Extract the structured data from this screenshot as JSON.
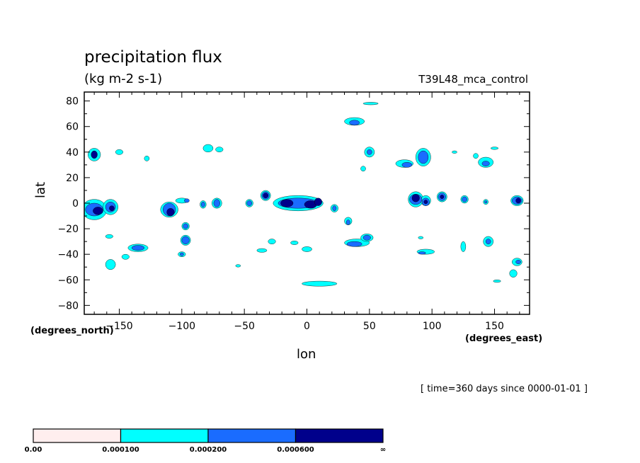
{
  "title": "precipitation flux",
  "subtitle": "(kg m-2 s-1)",
  "run_name": "T39L48_mca_control",
  "time_info": "[ time=360 days since 0000-01-01 ]",
  "chart_data": {
    "type": "heatmap",
    "xlabel": "lon",
    "ylabel": "lat",
    "x_unit": "(degrees_east)",
    "y_unit": "(degrees_north)",
    "xlim": [
      -178,
      178
    ],
    "ylim": [
      -87,
      87
    ],
    "x_ticks": [
      -150,
      -100,
      -50,
      0,
      50,
      100,
      150
    ],
    "x_tick_labels": [
      "−150",
      "−100",
      "−50",
      "0",
      "50",
      "100",
      "150"
    ],
    "y_ticks": [
      80,
      60,
      40,
      20,
      0,
      -20,
      -40,
      -60,
      -80
    ],
    "y_tick_labels": [
      "80",
      "60",
      "40",
      "20",
      "0",
      "−20",
      "−40",
      "−60",
      "−80"
    ],
    "colorbar": {
      "levels": [
        "0.00",
        "0.000100",
        "0.000200",
        "0.000600",
        "∞"
      ],
      "colors": [
        "#ffeeee",
        "#00ffff",
        "#1a6cff",
        "#00008b"
      ]
    },
    "regions": [
      {
        "level": 1,
        "lon": -170,
        "lat": 38,
        "rlon": 5,
        "rlat": 5
      },
      {
        "level": 3,
        "lon": -170,
        "lat": 38,
        "rlon": 2.5,
        "rlat": 3
      },
      {
        "level": 1,
        "lon": -170,
        "lat": -5,
        "rlon": 10,
        "rlat": 8
      },
      {
        "level": 2,
        "lon": -170,
        "lat": -5,
        "rlon": 7,
        "rlat": 5
      },
      {
        "level": 3,
        "lon": -167,
        "lat": -6,
        "rlon": 4,
        "rlat": 3
      },
      {
        "level": 1,
        "lon": -157,
        "lat": -3,
        "rlon": 6,
        "rlat": 6
      },
      {
        "level": 2,
        "lon": -157,
        "lat": -3,
        "rlon": 4,
        "rlat": 4
      },
      {
        "level": 3,
        "lon": -156,
        "lat": -4,
        "rlon": 2,
        "rlat": 2
      },
      {
        "level": 1,
        "lon": -150,
        "lat": 40,
        "rlon": 3,
        "rlat": 2
      },
      {
        "level": 1,
        "lon": -128,
        "lat": 35,
        "rlon": 2,
        "rlat": 2
      },
      {
        "level": 1,
        "lon": -110,
        "lat": -5,
        "rlon": 7,
        "rlat": 6
      },
      {
        "level": 2,
        "lon": -110,
        "lat": -5,
        "rlon": 5,
        "rlat": 5
      },
      {
        "level": 3,
        "lon": -109,
        "lat": -7,
        "rlon": 3,
        "rlat": 3
      },
      {
        "level": 1,
        "lon": -97,
        "lat": -18,
        "rlon": 3,
        "rlat": 3
      },
      {
        "level": 2,
        "lon": -97,
        "lat": -18,
        "rlon": 2,
        "rlat": 2
      },
      {
        "level": 1,
        "lon": -97,
        "lat": -29,
        "rlon": 4,
        "rlat": 4
      },
      {
        "level": 2,
        "lon": -97,
        "lat": -29,
        "rlon": 3,
        "rlat": 3
      },
      {
        "level": 1,
        "lon": -100,
        "lat": 2,
        "rlon": 5,
        "rlat": 2
      },
      {
        "level": 2,
        "lon": -96,
        "lat": 2,
        "rlon": 2,
        "rlat": 1.5
      },
      {
        "level": 1,
        "lon": -83,
        "lat": -1,
        "rlon": 2.5,
        "rlat": 3
      },
      {
        "level": 2,
        "lon": -83,
        "lat": -1,
        "rlon": 1.5,
        "rlat": 2
      },
      {
        "level": 1,
        "lon": -72,
        "lat": 0,
        "rlon": 4,
        "rlat": 4
      },
      {
        "level": 2,
        "lon": -72,
        "lat": 0,
        "rlon": 2.5,
        "rlat": 3
      },
      {
        "level": 1,
        "lon": -79,
        "lat": 43,
        "rlon": 4,
        "rlat": 3
      },
      {
        "level": 1,
        "lon": -70,
        "lat": 42,
        "rlon": 3,
        "rlat": 2
      },
      {
        "level": 1,
        "lon": -135,
        "lat": -35,
        "rlon": 8,
        "rlat": 3
      },
      {
        "level": 2,
        "lon": -135,
        "lat": -35,
        "rlon": 5,
        "rlat": 2
      },
      {
        "level": 1,
        "lon": -157,
        "lat": -48,
        "rlon": 4,
        "rlat": 4
      },
      {
        "level": 1,
        "lon": -158,
        "lat": -26,
        "rlon": 3,
        "rlat": 1.5
      },
      {
        "level": 1,
        "lon": -145,
        "lat": -42,
        "rlon": 3,
        "rlat": 2
      },
      {
        "level": 1,
        "lon": -100,
        "lat": -40,
        "rlon": 3,
        "rlat": 2
      },
      {
        "level": 2,
        "lon": -100,
        "lat": -40,
        "rlon": 1.5,
        "rlat": 1.2
      },
      {
        "level": 1,
        "lon": -46,
        "lat": 0,
        "rlon": 3,
        "rlat": 3
      },
      {
        "level": 2,
        "lon": -46,
        "lat": 0,
        "rlon": 2,
        "rlat": 2
      },
      {
        "level": 1,
        "lon": -33,
        "lat": 6,
        "rlon": 4,
        "rlat": 4
      },
      {
        "level": 2,
        "lon": -33,
        "lat": 6,
        "rlon": 3,
        "rlat": 3
      },
      {
        "level": 3,
        "lon": -33,
        "lat": 6,
        "rlon": 2,
        "rlat": 2
      },
      {
        "level": 1,
        "lon": -7,
        "lat": 0,
        "rlon": 20,
        "rlat": 6
      },
      {
        "level": 2,
        "lon": -7,
        "lat": 0,
        "rlon": 16,
        "rlat": 4
      },
      {
        "level": 3,
        "lon": -16,
        "lat": 0,
        "rlon": 5,
        "rlat": 3
      },
      {
        "level": 3,
        "lon": 3,
        "lat": -1,
        "rlon": 5,
        "rlat": 3
      },
      {
        "level": 3,
        "lon": 9,
        "lat": 1,
        "rlon": 3,
        "rlat": 3
      },
      {
        "level": 1,
        "lon": 22,
        "lat": -4,
        "rlon": 3,
        "rlat": 3
      },
      {
        "level": 2,
        "lon": 22,
        "lat": -4,
        "rlon": 1.5,
        "rlat": 2
      },
      {
        "level": 1,
        "lon": 38,
        "lat": 64,
        "rlon": 8,
        "rlat": 3
      },
      {
        "level": 2,
        "lon": 38,
        "lat": 63,
        "rlon": 4,
        "rlat": 2
      },
      {
        "level": 1,
        "lon": 51,
        "lat": 78,
        "rlon": 6,
        "rlat": 1
      },
      {
        "level": 1,
        "lon": 50,
        "lat": 40,
        "rlon": 4,
        "rlat": 4
      },
      {
        "level": 2,
        "lon": 50,
        "lat": 40,
        "rlon": 2,
        "rlat": 2
      },
      {
        "level": 1,
        "lon": 45,
        "lat": 27,
        "rlon": 2,
        "rlat": 2
      },
      {
        "level": 1,
        "lon": -28,
        "lat": -30,
        "rlon": 3,
        "rlat": 2
      },
      {
        "level": 1,
        "lon": -10,
        "lat": -31,
        "rlon": 3,
        "rlat": 1.5
      },
      {
        "level": 1,
        "lon": -36,
        "lat": -37,
        "rlon": 4,
        "rlat": 1.5
      },
      {
        "level": 1,
        "lon": 0,
        "lat": -36,
        "rlon": 4,
        "rlat": 2
      },
      {
        "level": 1,
        "lon": 33,
        "lat": -14,
        "rlon": 3,
        "rlat": 3
      },
      {
        "level": 2,
        "lon": 33,
        "lat": -15,
        "rlon": 1.5,
        "rlat": 2
      },
      {
        "level": 1,
        "lon": 40,
        "lat": -31,
        "rlon": 10,
        "rlat": 3
      },
      {
        "level": 2,
        "lon": 38,
        "lat": -32,
        "rlon": 6,
        "rlat": 2
      },
      {
        "level": 1,
        "lon": 48,
        "lat": -27,
        "rlon": 5,
        "rlat": 3
      },
      {
        "level": 2,
        "lon": 48,
        "lat": -27,
        "rlon": 3,
        "rlat": 2
      },
      {
        "level": 1,
        "lon": 10,
        "lat": -63,
        "rlon": 14,
        "rlat": 2
      },
      {
        "level": 1,
        "lon": -55,
        "lat": -49,
        "rlon": 2,
        "rlat": 1
      },
      {
        "level": 1,
        "lon": 87,
        "lat": 3,
        "rlon": 6,
        "rlat": 6
      },
      {
        "level": 2,
        "lon": 87,
        "lat": 3,
        "rlon": 5,
        "rlat": 4
      },
      {
        "level": 3,
        "lon": 87,
        "lat": 4,
        "rlon": 3,
        "rlat": 3
      },
      {
        "level": 1,
        "lon": 95,
        "lat": 2,
        "rlon": 4,
        "rlat": 4
      },
      {
        "level": 2,
        "lon": 95,
        "lat": 1,
        "rlon": 3,
        "rlat": 3
      },
      {
        "level": 3,
        "lon": 95,
        "lat": 1,
        "rlon": 1.5,
        "rlat": 1.5
      },
      {
        "level": 1,
        "lon": 108,
        "lat": 5,
        "rlon": 4,
        "rlat": 4
      },
      {
        "level": 2,
        "lon": 108,
        "lat": 5,
        "rlon": 3,
        "rlat": 3
      },
      {
        "level": 3,
        "lon": 108,
        "lat": 5,
        "rlon": 1.5,
        "rlat": 1.5
      },
      {
        "level": 1,
        "lon": 93,
        "lat": 36,
        "rlon": 6,
        "rlat": 7
      },
      {
        "level": 2,
        "lon": 93,
        "lat": 36,
        "rlon": 4,
        "rlat": 5
      },
      {
        "level": 1,
        "lon": 78,
        "lat": 31,
        "rlon": 7,
        "rlat": 3
      },
      {
        "level": 2,
        "lon": 80,
        "lat": 30,
        "rlon": 4,
        "rlat": 2
      },
      {
        "level": 1,
        "lon": 143,
        "lat": 32,
        "rlon": 6,
        "rlat": 4
      },
      {
        "level": 2,
        "lon": 143,
        "lat": 31,
        "rlon": 3,
        "rlat": 2
      },
      {
        "level": 1,
        "lon": 135,
        "lat": 37,
        "rlon": 2,
        "rlat": 2
      },
      {
        "level": 1,
        "lon": 150,
        "lat": 43,
        "rlon": 3,
        "rlat": 1
      },
      {
        "level": 1,
        "lon": 118,
        "lat": 40,
        "rlon": 2,
        "rlat": 1
      },
      {
        "level": 1,
        "lon": 126,
        "lat": 3,
        "rlon": 3,
        "rlat": 3
      },
      {
        "level": 2,
        "lon": 126,
        "lat": 3,
        "rlon": 2,
        "rlat": 2
      },
      {
        "level": 1,
        "lon": 143,
        "lat": 1,
        "rlon": 2,
        "rlat": 2
      },
      {
        "level": 2,
        "lon": 143,
        "lat": 1,
        "rlon": 1,
        "rlat": 1
      },
      {
        "level": 1,
        "lon": 168,
        "lat": 2,
        "rlon": 5,
        "rlat": 4
      },
      {
        "level": 2,
        "lon": 168,
        "lat": 2,
        "rlon": 4,
        "rlat": 3
      },
      {
        "level": 3,
        "lon": 169,
        "lat": 2,
        "rlon": 2,
        "rlat": 2
      },
      {
        "level": 1,
        "lon": 145,
        "lat": -30,
        "rlon": 4,
        "rlat": 4
      },
      {
        "level": 2,
        "lon": 145,
        "lat": -30,
        "rlon": 2,
        "rlat": 2
      },
      {
        "level": 1,
        "lon": 125,
        "lat": -34,
        "rlon": 2,
        "rlat": 4
      },
      {
        "level": 1,
        "lon": 95,
        "lat": -38,
        "rlon": 7,
        "rlat": 2
      },
      {
        "level": 2,
        "lon": 92,
        "lat": -39,
        "rlon": 3,
        "rlat": 1
      },
      {
        "level": 1,
        "lon": 168,
        "lat": -46,
        "rlon": 4,
        "rlat": 3
      },
      {
        "level": 2,
        "lon": 169,
        "lat": -46,
        "rlon": 2,
        "rlat": 1.5
      },
      {
        "level": 1,
        "lon": 165,
        "lat": -55,
        "rlon": 3,
        "rlat": 3
      },
      {
        "level": 1,
        "lon": 152,
        "lat": -61,
        "rlon": 3,
        "rlat": 1
      },
      {
        "level": 1,
        "lon": 91,
        "lat": -27,
        "rlon": 2,
        "rlat": 1
      }
    ]
  }
}
